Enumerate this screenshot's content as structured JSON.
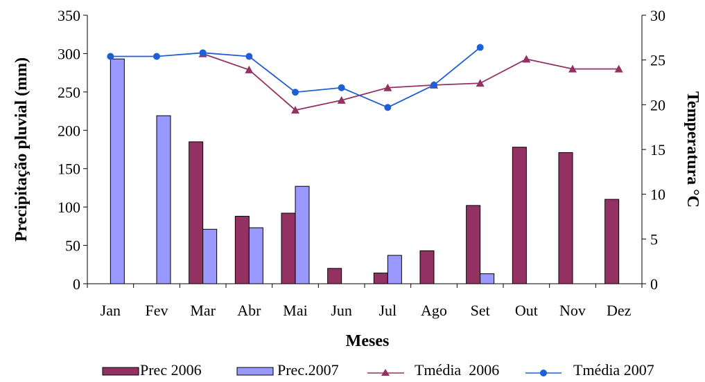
{
  "chart_data": {
    "type": "bar",
    "xlabel": "Meses",
    "ylabel": "Precipitação pluvial (mm)",
    "y2label": "Temperatura °C",
    "categories": [
      "Jan",
      "Fev",
      "Mar",
      "Abr",
      "Mai",
      "Jun",
      "Jul",
      "Ago",
      "Set",
      "Out",
      "Nov",
      "Dez"
    ],
    "ylim": [
      0,
      350
    ],
    "yticks": [
      "0",
      "50",
      "100",
      "150",
      "200",
      "250",
      "300",
      "350"
    ],
    "y2lim": [
      0,
      30
    ],
    "y2ticks": [
      "0",
      "5",
      "10",
      "15",
      "20",
      "25",
      "30"
    ],
    "grid": false,
    "legend_position": "bottom",
    "bar_series": [
      {
        "name": "Prec 2006",
        "color": "#943163",
        "values": [
          null,
          null,
          185,
          88,
          92,
          20,
          14,
          43,
          102,
          178,
          171,
          110
        ]
      },
      {
        "name": "Prec.2007",
        "color": "#9999ff",
        "values": [
          293,
          219,
          71,
          73,
          127,
          null,
          37,
          null,
          13,
          null,
          null,
          null
        ]
      }
    ],
    "line_series": [
      {
        "name": "Tmédia  2006",
        "color": "#943163",
        "marker": "triangle",
        "axis": "right",
        "values": [
          null,
          null,
          25.7,
          23.9,
          19.4,
          20.5,
          21.9,
          22.2,
          22.4,
          25.1,
          24.0,
          24.0
        ]
      },
      {
        "name": "Tmédia 2007",
        "color": "#1f5fd6",
        "marker": "circle",
        "axis": "right",
        "values": [
          25.4,
          25.4,
          25.8,
          25.4,
          21.4,
          21.9,
          19.7,
          22.2,
          26.4,
          null,
          null,
          null
        ]
      }
    ]
  }
}
